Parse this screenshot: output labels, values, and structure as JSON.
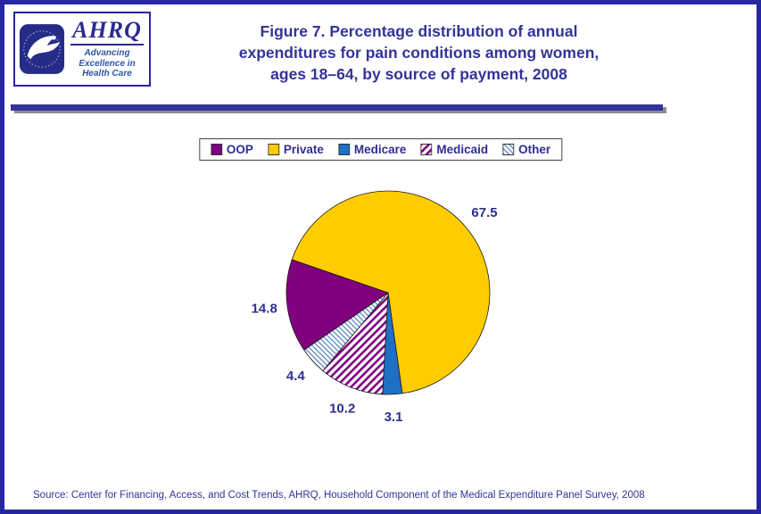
{
  "page": {
    "title_lines": [
      "Figure 7. Percentage distribution of annual",
      "expenditures for pain conditions among women,",
      "ages 18–64, by source of payment, 2008"
    ],
    "source": "Source: Center for Financing, Access, and Cost Trends, AHRQ, Household Component of the Medical Expenditure Panel Survey, 2008"
  },
  "logo": {
    "org": "AHRQ",
    "tagline_lines": [
      "Advancing",
      "Excellence in",
      "Health Care"
    ],
    "hhs_icon": "hhs-eagle-seal"
  },
  "colors": {
    "frame": "#2626A3",
    "title": "#333399",
    "divider": "#333399",
    "divider_shadow": "#8C8C8C",
    "label": "#2E2E92",
    "legend_text": "#2E2E92",
    "source": "#333399"
  },
  "chart_data": {
    "type": "pie",
    "title": "Percentage distribution of annual expenditures for pain conditions among women, ages 18-64, by source of payment, 2008",
    "legend_position": "top",
    "direction": "clockwise",
    "start_angle_deg": -124.3,
    "stroke": "#1a1a1a",
    "slices": [
      {
        "label": "OOP",
        "value": 14.8,
        "fill": {
          "style": "solid",
          "color": "#800080"
        }
      },
      {
        "label": "Private",
        "value": 67.5,
        "fill": {
          "style": "solid",
          "color": "#FFCC00"
        }
      },
      {
        "label": "Medicare",
        "value": 3.1,
        "fill": {
          "style": "solid",
          "color": "#1F6FC5"
        }
      },
      {
        "label": "Medicaid",
        "value": 10.2,
        "fill": {
          "style": "hatch",
          "color": "#800080",
          "angle": 45,
          "line_width": 2.6,
          "spacing": 6
        }
      },
      {
        "label": "Other",
        "value": 4.4,
        "fill": {
          "style": "hatch",
          "color": "#4F81BD",
          "angle": -45,
          "line_width": 1.2,
          "spacing": 4
        }
      }
    ]
  }
}
